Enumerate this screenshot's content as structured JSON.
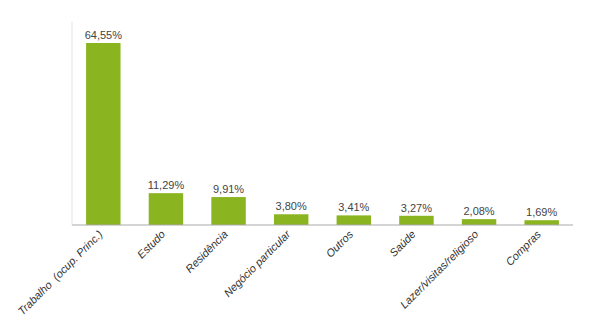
{
  "chart_data": {
    "type": "bar",
    "categories": [
      "Trabalho  (ocup. Princ.)",
      "Estudo",
      "Residência",
      "Negócio particular",
      "Outros",
      "Saúde",
      "Lazer/visitas/religioso",
      "Compras"
    ],
    "values": [
      64.55,
      11.29,
      9.91,
      3.8,
      3.41,
      3.27,
      2.08,
      1.69
    ],
    "value_labels": [
      "64,55%",
      "11,29%",
      "9,91%",
      "3,80%",
      "3,41%",
      "3,27%",
      "2,08%",
      "1,69%"
    ],
    "color": "#8ab420",
    "ylim": [
      0,
      72
    ],
    "data_labels": true,
    "tick_labels": "x",
    "grid": false
  }
}
